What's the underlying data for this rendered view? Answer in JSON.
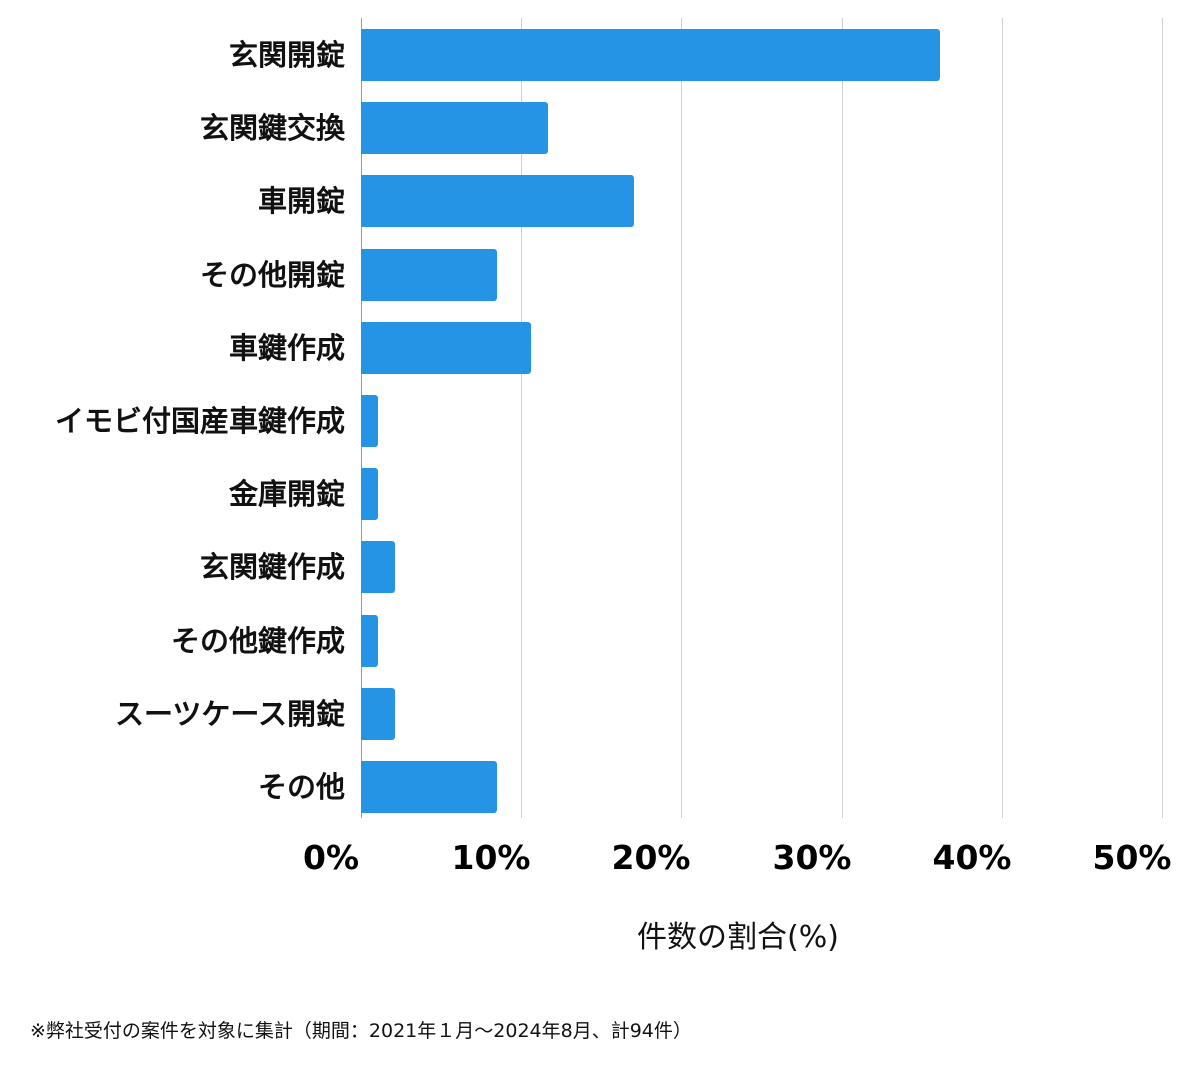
{
  "chart_data": {
    "type": "bar",
    "orientation": "horizontal",
    "categories": [
      "玄関開錠",
      "玄関鍵交換",
      "車開錠",
      "その他開錠",
      "車鍵作成",
      "イモビ付国産車鍵作成",
      "金庫開錠",
      "玄関鍵作成",
      "その他鍵作成",
      "スーツケース開錠",
      "その他"
    ],
    "values": [
      36.17,
      11.7,
      17.02,
      8.51,
      10.64,
      1.06,
      1.06,
      2.13,
      1.06,
      2.13,
      8.51
    ],
    "counts_estimated": [
      34,
      11,
      16,
      8,
      10,
      1,
      1,
      2,
      1,
      2,
      8
    ],
    "title": "",
    "xlabel": "件数の割合(%)",
    "ylabel": "",
    "xlim": [
      0,
      50
    ],
    "xticks": [
      "0%",
      "10%",
      "20%",
      "30%",
      "40%",
      "50%"
    ],
    "grid": true,
    "legend": null,
    "bar_color": "#2694e4"
  },
  "axis": {
    "ticks": [
      "0%",
      "10%",
      "20%",
      "30%",
      "40%",
      "50%"
    ],
    "xlabel": "件数の割合(%)"
  },
  "footnote": "※弊社受付の案件を対象に集計（期間：2021年１月〜2024年8月、計94件）"
}
